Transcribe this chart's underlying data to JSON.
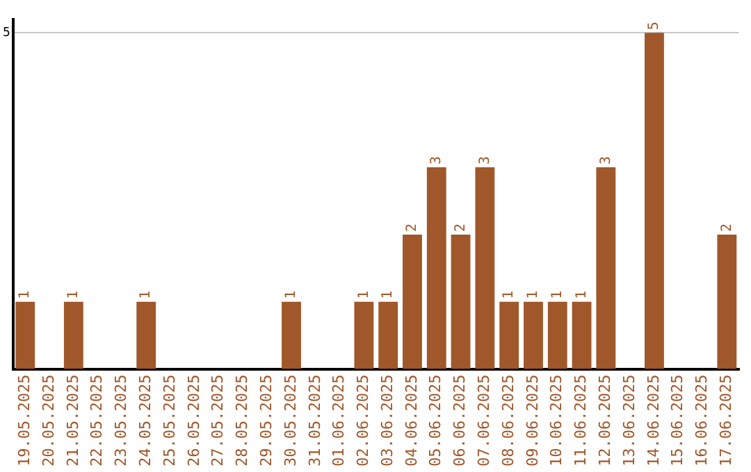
{
  "chart_data": {
    "type": "bar",
    "categories": [
      "19.05.2025",
      "20.05.2025",
      "21.05.2025",
      "22.05.2025",
      "23.05.2025",
      "24.05.2025",
      "25.05.2025",
      "26.05.2025",
      "27.05.2025",
      "28.05.2025",
      "29.05.2025",
      "30.05.2025",
      "31.05.2025",
      "01.06.2025",
      "02.06.2025",
      "03.06.2025",
      "04.06.2025",
      "05.06.2025",
      "06.06.2025",
      "07.06.2025",
      "08.06.2025",
      "09.06.2025",
      "10.06.2025",
      "11.06.2025",
      "12.06.2025",
      "13.06.2025",
      "14.06.2025",
      "15.06.2025",
      "16.06.2025",
      "17.06.2025"
    ],
    "values": [
      1,
      0,
      1,
      0,
      0,
      1,
      0,
      0,
      0,
      0,
      0,
      1,
      0,
      0,
      1,
      1,
      2,
      3,
      2,
      3,
      1,
      1,
      1,
      1,
      3,
      0,
      5,
      0,
      0,
      2
    ],
    "value_labels": [
      "1",
      null,
      "1",
      null,
      null,
      "1",
      null,
      null,
      null,
      null,
      null,
      "1",
      null,
      null,
      "1",
      "1",
      "2",
      "3",
      "2",
      "3",
      "1",
      "1",
      "1",
      "1",
      "3",
      null,
      "5",
      null,
      null,
      "2"
    ],
    "color": "#a0572a",
    "ylim": [
      0,
      5.2
    ],
    "yticks": [
      5
    ],
    "grid": "y",
    "legend": false
  }
}
